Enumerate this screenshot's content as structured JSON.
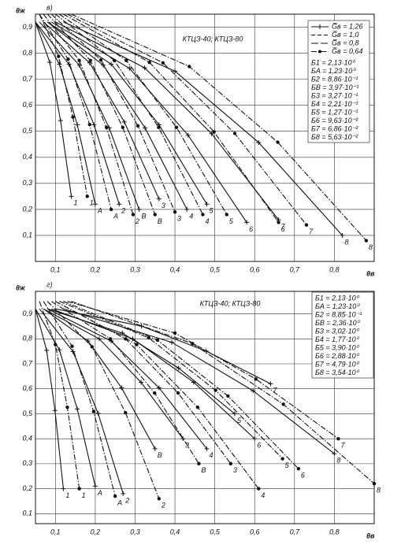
{
  "chart_data": [
    {
      "type": "line",
      "panel": "в)",
      "y_label": "θж",
      "x_label": "θв",
      "annotation": "КТЦЗ-40; КТЦЗ-80",
      "xlim": [
        0.05,
        0.9
      ],
      "ylim": [
        0,
        0.95
      ],
      "grid": true,
      "xticks": [
        {
          "value": 0.1,
          "label": "0,1"
        },
        {
          "value": 0.2,
          "label": "0,2"
        },
        {
          "value": 0.3,
          "label": "0,3"
        },
        {
          "value": 0.4,
          "label": "0,4"
        },
        {
          "value": 0.5,
          "label": "0,5"
        },
        {
          "value": 0.6,
          "label": "0,6"
        },
        {
          "value": 0.7,
          "label": "0,7"
        },
        {
          "value": 0.8,
          "label": "0,8"
        }
      ],
      "yticks": [
        {
          "value": 0.1,
          "label": "0,1"
        },
        {
          "value": 0.2,
          "label": "0,2"
        },
        {
          "value": 0.3,
          "label": "0,3"
        },
        {
          "value": 0.4,
          "label": "0,4"
        },
        {
          "value": 0.5,
          "label": "0,5"
        },
        {
          "value": 0.6,
          "label": "0,6"
        },
        {
          "value": 0.7,
          "label": "0,7"
        },
        {
          "value": 0.8,
          "label": "0,8"
        },
        {
          "value": 0.9,
          "label": "0,9"
        }
      ],
      "style_legend": [
        {
          "label": "G̅в = 1,26",
          "dash": "solid",
          "marker": "+"
        },
        {
          "label": "G̅в = 1,0",
          "dash": "dashed",
          "marker": "none"
        },
        {
          "label": "G̅в = 0,8",
          "dash": "longdash",
          "marker": "none"
        },
        {
          "label": "G̅в = 0,64",
          "dash": "dashdot",
          "marker": "dot"
        }
      ],
      "b_values": [
        "Б1 = 2,13·10⁰",
        "БA = 1,23·10⁰",
        "Б2 = 8,86·10⁻¹",
        "БB = 3,97·10⁻¹",
        "Б3 = 3,27·10⁻¹",
        "Б4 = 2,21·10⁻¹",
        "Б5 = 1,27·10⁻¹",
        "Б6 = 9,63·10⁻²",
        "Б7 = 6,86·10⁻²",
        "Б8 = 5,63·10⁻²"
      ],
      "series": [
        {
          "name": "1",
          "dash": "solid",
          "marker": "+",
          "color": "#111",
          "x": [
            0.05,
            0.086,
            0.113,
            0.14
          ],
          "values": [
            0.92,
            0.765,
            0.541,
            0.25
          ]
        },
        {
          "name": "A",
          "dash": "solid",
          "marker": "+",
          "color": "#111",
          "x": [
            0.05,
            0.11,
            0.155,
            0.2
          ],
          "values": [
            0.92,
            0.758,
            0.525,
            0.22
          ]
        },
        {
          "name": "2",
          "dash": "solid",
          "marker": "+",
          "color": "#111",
          "x": [
            0.05,
            0.134,
            0.197,
            0.26
          ],
          "values": [
            0.92,
            0.758,
            0.525,
            0.22
          ]
        },
        {
          "name": "B",
          "dash": "solid",
          "marker": "+",
          "color": "#111",
          "x": [
            0.06,
            0.16,
            0.235,
            0.31
          ],
          "values": [
            0.92,
            0.754,
            0.513,
            0.2
          ]
        },
        {
          "name": "3",
          "dash": "solid",
          "marker": "+",
          "color": "#111",
          "x": [
            0.07,
            0.186,
            0.273,
            0.36
          ],
          "values": [
            0.92,
            0.763,
            0.536,
            0.24
          ]
        },
        {
          "name": "4",
          "dash": "solid",
          "marker": "+",
          "color": "#111",
          "x": [
            0.08,
            0.22,
            0.325,
            0.43
          ],
          "values": [
            0.92,
            0.754,
            0.513,
            0.2
          ]
        },
        {
          "name": "5",
          "dash": "solid",
          "marker": "+",
          "color": "#111",
          "x": [
            0.08,
            0.24,
            0.36,
            0.48
          ],
          "values": [
            0.92,
            0.758,
            0.525,
            0.22
          ]
        },
        {
          "name": "6",
          "dash": "solid",
          "marker": "+",
          "color": "#111",
          "x": [
            0.09,
            0.286,
            0.433,
            0.58
          ],
          "values": [
            0.92,
            0.742,
            0.485,
            0.15
          ]
        },
        {
          "name": "7",
          "dash": "solid",
          "marker": "+",
          "color": "#111",
          "x": [
            0.1,
            0.324,
            0.492,
            0.66
          ],
          "values": [
            0.92,
            0.744,
            0.491,
            0.16
          ]
        },
        {
          "name": "8",
          "dash": "solid",
          "marker": "+",
          "color": "#111",
          "x": [
            0.12,
            0.4,
            0.61,
            0.82
          ],
          "values": [
            0.92,
            0.731,
            0.457,
            0.1
          ]
        },
        {
          "name": "1",
          "dash": "dashdot",
          "marker": "dot",
          "color": "#111",
          "x": [
            0.06,
            0.108,
            0.144,
            0.18
          ],
          "values": [
            0.95,
            0.788,
            0.555,
            0.25
          ]
        },
        {
          "name": "A",
          "dash": "dashdot",
          "marker": "dot",
          "color": "#111",
          "x": [
            0.06,
            0.132,
            0.186,
            0.24
          ],
          "values": [
            0.95,
            0.777,
            0.526,
            0.2
          ]
        },
        {
          "name": "2",
          "dash": "dashdot",
          "marker": "dot",
          "color": "#111",
          "x": [
            0.07,
            0.16,
            0.228,
            0.295
          ],
          "values": [
            0.95,
            0.772,
            0.515,
            0.18
          ]
        },
        {
          "name": "B",
          "dash": "dashdot",
          "marker": "dot",
          "color": "#111",
          "x": [
            0.08,
            0.188,
            0.269,
            0.35
          ],
          "values": [
            0.95,
            0.772,
            0.515,
            0.18
          ]
        },
        {
          "name": "3",
          "dash": "dashdot",
          "marker": "dot",
          "color": "#111",
          "x": [
            0.09,
            0.214,
            0.307,
            0.4
          ],
          "values": [
            0.95,
            0.774,
            0.521,
            0.19
          ]
        },
        {
          "name": "4",
          "dash": "dashdot",
          "marker": "dot",
          "color": "#111",
          "x": [
            0.1,
            0.248,
            0.359,
            0.47
          ],
          "values": [
            0.95,
            0.772,
            0.515,
            0.18
          ]
        },
        {
          "name": "5",
          "dash": "dashdot",
          "marker": "dot",
          "color": "#111",
          "x": [
            0.11,
            0.278,
            0.404,
            0.53
          ],
          "values": [
            0.95,
            0.772,
            0.515,
            0.18
          ]
        },
        {
          "name": "6",
          "dash": "dashdot",
          "marker": "dot",
          "color": "#111",
          "x": [
            0.12,
            0.336,
            0.498,
            0.66
          ],
          "values": [
            0.95,
            0.765,
            0.498,
            0.15
          ]
        },
        {
          "name": "7",
          "dash": "dashdot",
          "marker": "dot",
          "color": "#111",
          "x": [
            0.13,
            0.37,
            0.55,
            0.73
          ],
          "values": [
            0.95,
            0.763,
            0.492,
            0.14
          ]
        },
        {
          "name": "8",
          "dash": "dashdot",
          "marker": "dot",
          "color": "#111",
          "x": [
            0.14,
            0.436,
            0.658,
            0.88
          ],
          "values": [
            0.95,
            0.749,
            0.458,
            0.08
          ]
        }
      ]
    },
    {
      "type": "line",
      "panel": "г)",
      "y_label": "θж",
      "x_label": "θв",
      "annotation": "КТЦЗ-40; КТЦЗ-80",
      "xlim": [
        0.05,
        0.9
      ],
      "ylim": [
        0.06,
        0.99
      ],
      "grid": true,
      "xticks": [
        {
          "value": 0.1,
          "label": "0,1"
        },
        {
          "value": 0.2,
          "label": "0,2"
        },
        {
          "value": 0.3,
          "label": "0,3"
        },
        {
          "value": 0.4,
          "label": "0,4"
        },
        {
          "value": 0.5,
          "label": "0,5"
        },
        {
          "value": 0.6,
          "label": "0,6"
        },
        {
          "value": 0.7,
          "label": "0,7"
        },
        {
          "value": 0.8,
          "label": "0,8"
        }
      ],
      "yticks": [
        {
          "value": 0.1,
          "label": "0,1"
        },
        {
          "value": 0.2,
          "label": "0,2"
        },
        {
          "value": 0.3,
          "label": "0,3"
        },
        {
          "value": 0.4,
          "label": "0,4"
        },
        {
          "value": 0.5,
          "label": "0,5"
        },
        {
          "value": 0.6,
          "label": "0,6"
        },
        {
          "value": 0.7,
          "label": "0,7"
        },
        {
          "value": 0.8,
          "label": "0,8"
        },
        {
          "value": 0.9,
          "label": "0,9"
        }
      ],
      "b_values": [
        "Б1 = 2,13·10⁰",
        "БA = 1,23·10⁰",
        "Б2 = 8,85·10⁻¹",
        "БB = 2,36·10⁰",
        "Б3 = 3,02·10⁰",
        "Б4 = 1,77·10⁰",
        "Б5 = 3,90·10⁰",
        "Б6 = 2,88·10⁰",
        "Б7 = 4,79·10⁰",
        "Б8 = 3,54·10⁰"
      ],
      "series": [
        {
          "name": "1",
          "dash": "solid",
          "marker": "+",
          "color": "#111",
          "x": [
            0.05,
            0.078,
            0.099,
            0.12
          ],
          "values": [
            0.92,
            0.754,
            0.513,
            0.2
          ]
        },
        {
          "name": "A",
          "dash": "solid",
          "marker": "+",
          "color": "#111",
          "x": [
            0.05,
            0.11,
            0.155,
            0.2
          ],
          "values": [
            0.92,
            0.756,
            0.519,
            0.21
          ]
        },
        {
          "name": "2",
          "dash": "solid",
          "marker": "+",
          "color": "#111",
          "x": [
            0.06,
            0.144,
            0.207,
            0.27
          ],
          "values": [
            0.92,
            0.749,
            0.502,
            0.18
          ]
        },
        {
          "name": "B",
          "dash": "solid",
          "marker": "+",
          "color": "#111",
          "x": [
            0.07,
            0.182,
            0.266,
            0.35
          ],
          "values": [
            0.92,
            0.791,
            0.604,
            0.36
          ]
        },
        {
          "name": "3",
          "dash": "solid",
          "marker": "+",
          "color": "#111",
          "x": [
            0.07,
            0.21,
            0.315,
            0.42
          ],
          "values": [
            0.92,
            0.8,
            0.626,
            0.4
          ]
        },
        {
          "name": "4",
          "dash": "solid",
          "marker": "+",
          "color": "#111",
          "x": [
            0.08,
            0.24,
            0.36,
            0.48
          ],
          "values": [
            0.92,
            0.791,
            0.604,
            0.36
          ]
        },
        {
          "name": "5",
          "dash": "solid",
          "marker": "+",
          "color": "#111",
          "x": [
            0.08,
            0.268,
            0.409,
            0.55
          ],
          "values": [
            0.92,
            0.823,
            0.683,
            0.5
          ]
        },
        {
          "name": "6",
          "dash": "solid",
          "marker": "+",
          "color": "#111",
          "x": [
            0.09,
            0.294,
            0.447,
            0.6
          ],
          "values": [
            0.92,
            0.8,
            0.626,
            0.4
          ]
        },
        {
          "name": "7",
          "dash": "solid",
          "marker": "+",
          "color": "#111",
          "x": [
            0.1,
            0.316,
            0.478,
            0.64
          ],
          "values": [
            0.92,
            0.851,
            0.751,
            0.62
          ]
        },
        {
          "name": "8",
          "dash": "solid",
          "marker": "+",
          "color": "#111",
          "x": [
            0.12,
            0.392,
            0.596,
            0.8
          ],
          "values": [
            0.92,
            0.786,
            0.592,
            0.34
          ]
        },
        {
          "name": "1",
          "dash": "dashdot",
          "marker": "dot",
          "color": "#111",
          "x": [
            0.06,
            0.1,
            0.13,
            0.16
          ],
          "values": [
            0.95,
            0.777,
            0.526,
            0.2
          ]
        },
        {
          "name": "A",
          "dash": "dashdot",
          "marker": "dot",
          "color": "#111",
          "x": [
            0.07,
            0.142,
            0.196,
            0.25
          ],
          "values": [
            0.95,
            0.77,
            0.509,
            0.17
          ]
        },
        {
          "name": "2",
          "dash": "dashdot",
          "marker": "dot",
          "color": "#111",
          "x": [
            0.08,
            0.192,
            0.276,
            0.36
          ],
          "values": [
            0.95,
            0.768,
            0.504,
            0.16
          ]
        },
        {
          "name": "B",
          "dash": "dashdot",
          "marker": "dot",
          "color": "#111",
          "x": [
            0.09,
            0.238,
            0.349,
            0.46
          ],
          "values": [
            0.95,
            0.8,
            0.583,
            0.3
          ]
        },
        {
          "name": "3",
          "dash": "dashdot",
          "marker": "dot",
          "color": "#111",
          "x": [
            0.1,
            0.276,
            0.408,
            0.54
          ],
          "values": [
            0.95,
            0.8,
            0.583,
            0.3
          ]
        },
        {
          "name": "4",
          "dash": "dashdot",
          "marker": "dot",
          "color": "#111",
          "x": [
            0.1,
            0.304,
            0.457,
            0.61
          ],
          "values": [
            0.95,
            0.777,
            0.526,
            0.2
          ]
        },
        {
          "name": "5",
          "dash": "dashdot",
          "marker": "dot",
          "color": "#111",
          "x": [
            0.11,
            0.334,
            0.502,
            0.67
          ],
          "values": [
            0.95,
            0.804,
            0.594,
            0.32
          ]
        },
        {
          "name": "6",
          "dash": "dashdot",
          "marker": "dot",
          "color": "#111",
          "x": [
            0.12,
            0.356,
            0.533,
            0.71
          ],
          "values": [
            0.95,
            0.795,
            0.571,
            0.28
          ]
        },
        {
          "name": "7",
          "dash": "dashdot",
          "marker": "dot",
          "color": "#111",
          "x": [
            0.13,
            0.4,
            0.603,
            0.81
          ],
          "values": [
            0.95,
            0.823,
            0.639,
            0.4
          ]
        },
        {
          "name": "8",
          "dash": "dashdot",
          "marker": "dot",
          "color": "#111",
          "x": [
            0.14,
            0.444,
            0.672,
            0.9
          ],
          "values": [
            0.95,
            0.781,
            0.538,
            0.22
          ]
        }
      ]
    }
  ]
}
